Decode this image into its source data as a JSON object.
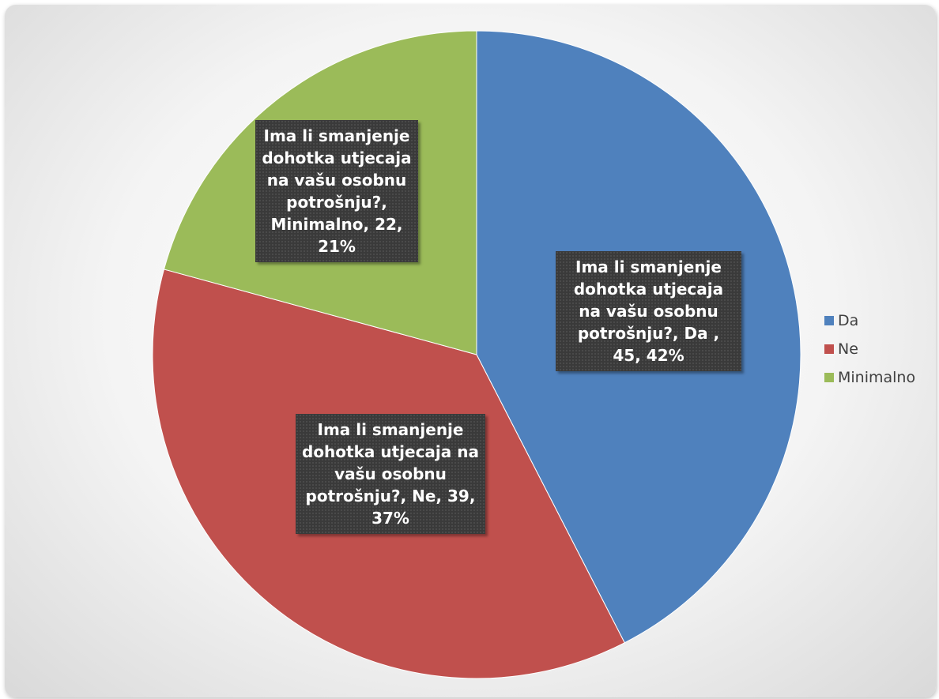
{
  "chart_data": {
    "type": "pie",
    "title": "",
    "categories": [
      "Da",
      "Ne",
      "Minimalno"
    ],
    "values": [
      45,
      39,
      22
    ],
    "percentages": [
      "42%",
      "37%",
      "21%"
    ],
    "colors": [
      "#4F81BD",
      "#C0504D",
      "#9BBB59"
    ],
    "legend_position": "right",
    "data_labels": [
      "Ima li smanjenje dohotka utjecaja na vašu osobnu potrošnju?, Da , 45, 42%",
      "Ima li smanjenje dohotka utjecaja na vašu osobnu potrošnju?, Ne, 39, 37%",
      "Ima li smanjenje dohotka utjecaja na vašu osobnu potrošnju?, Minimalno, 22, 21%"
    ]
  }
}
